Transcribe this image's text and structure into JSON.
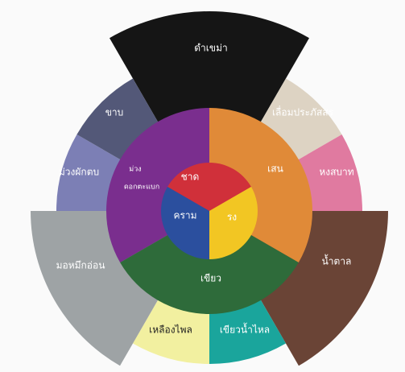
{
  "outer": [
    "ดำเขม่า",
    "เลื่อมประภัสสร",
    "หงสบาท",
    "น้ำตาล",
    "เขียวน้ำไหล",
    "เหลืองไพล",
    "มอหมึกอ่อน",
    "ม่วงผักตบ",
    "ขาบ"
  ],
  "middle": [
    [
      "ม่วง",
      "ดอกตะแบก"
    ],
    [
      "เสน"
    ],
    [
      "เขียว"
    ]
  ],
  "inner": [
    "ชาด",
    "รง",
    "คราม"
  ]
}
